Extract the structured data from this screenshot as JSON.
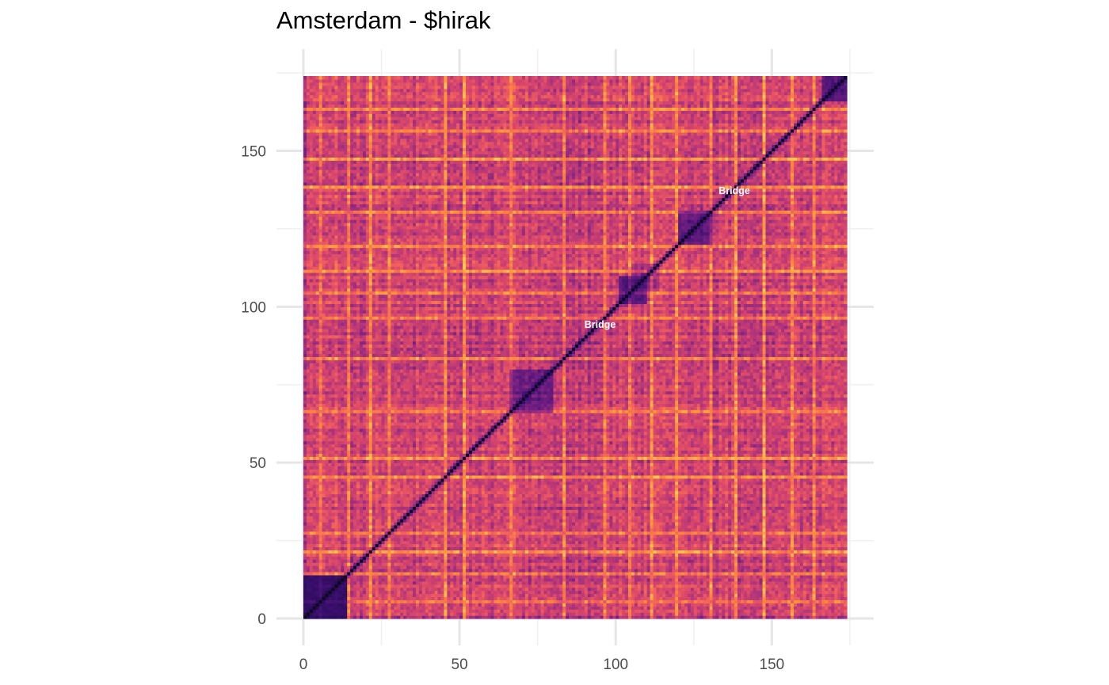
{
  "chart_data": {
    "type": "heatmap",
    "title": "Amsterdam - $hirak",
    "xlabel": "",
    "ylabel": "",
    "n": 174,
    "xlim": [
      0,
      174
    ],
    "ylim": [
      0,
      174
    ],
    "x_ticks": [
      0,
      50,
      100,
      150
    ],
    "y_ticks": [
      0,
      50,
      100,
      150
    ],
    "minor_ticks": [
      25,
      75,
      125,
      175
    ],
    "grid": true,
    "legend": "none",
    "colormap": [
      "#14092e",
      "#3b0f70",
      "#6f1f81",
      "#a8327d",
      "#d6456c",
      "#f1605d",
      "#fb8c3c",
      "#fec84d"
    ],
    "diagonal_color": "#0b0724",
    "annotations": [
      {
        "text": "Bridge",
        "x": 95,
        "y": 94
      },
      {
        "text": "Bridge",
        "x": 138,
        "y": 137
      }
    ],
    "description_of_values": "self-similarity matrix; low values (dark) along the diagonal and in dense blocks near 0-15, 65-80, 100-110, 120-130 and 165-174; mostly mid-to-high values (magenta/orange) elsewhere with bright yellow-orange stripes"
  }
}
